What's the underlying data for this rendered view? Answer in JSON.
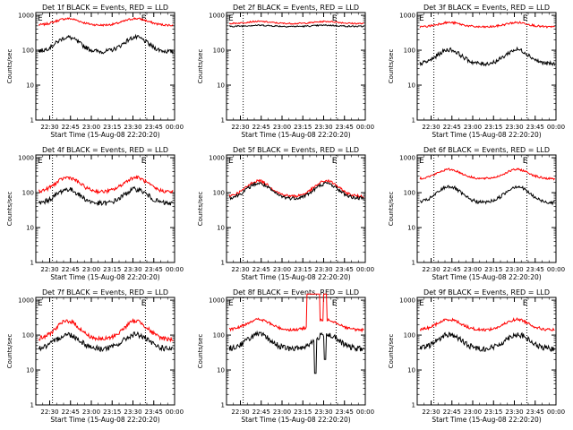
{
  "page": {
    "background": "#ffffff",
    "event_color": "#000000",
    "lld_color": "#ff0000"
  },
  "shared": {
    "xticks": [
      "22:30",
      "22:45",
      "23:00",
      "23:15",
      "23:30",
      "23:45",
      "00:00"
    ],
    "yticks": [
      "1",
      "10",
      "100",
      "1000"
    ],
    "ylabel": "Counts/sec",
    "xlabel": "Start Time (15-Aug-08 22:20:20)",
    "markers": [
      "E",
      "E"
    ]
  },
  "chart_data": [
    {
      "type": "line",
      "title": "Det 1f BLACK = Events, RED = LLD",
      "xlabel": "Start Time (15-Aug-08 22:20:20)",
      "ylabel": "Counts/sec",
      "y_scale": "log",
      "ylim": [
        1,
        1200
      ],
      "xlim": [
        "22:20",
        "00:00"
      ],
      "series": [
        {
          "name": "Events",
          "color": "#000000",
          "base": 90,
          "amp": 2.6,
          "noise": 0.06
        },
        {
          "name": "LLD",
          "color": "#ff0000",
          "base": 520,
          "amp": 1.55,
          "noise": 0.03
        }
      ]
    },
    {
      "type": "line",
      "title": "Det 2f BLACK = Events, RED = LLD",
      "xlabel": "Start Time (15-Aug-08 22:20:20)",
      "ylabel": "Counts/sec",
      "y_scale": "log",
      "ylim": [
        1,
        1200
      ],
      "xlim": [
        "22:20",
        "00:00"
      ],
      "series": [
        {
          "name": "Events",
          "color": "#000000",
          "base": 480,
          "amp": 1.08,
          "noise": 0.02
        },
        {
          "name": "LLD",
          "color": "#ff0000",
          "base": 580,
          "amp": 1.15,
          "noise": 0.02
        }
      ]
    },
    {
      "type": "line",
      "title": "Det 3f BLACK = Events, RED = LLD",
      "xlabel": "Start Time (15-Aug-08 22:20:20)",
      "ylabel": "Counts/sec",
      "y_scale": "log",
      "ylim": [
        1,
        1200
      ],
      "xlim": [
        "22:20",
        "00:00"
      ],
      "series": [
        {
          "name": "Events",
          "color": "#000000",
          "base": 40,
          "amp": 2.6,
          "noise": 0.06
        },
        {
          "name": "LLD",
          "color": "#ff0000",
          "base": 460,
          "amp": 1.35,
          "noise": 0.03
        }
      ]
    },
    {
      "type": "line",
      "title": "Det 4f BLACK = Events, RED = LLD",
      "xlabel": "Start Time (15-Aug-08 22:20:20)",
      "ylabel": "Counts/sec",
      "y_scale": "log",
      "ylim": [
        1,
        1200
      ],
      "xlim": [
        "22:20",
        "00:00"
      ],
      "series": [
        {
          "name": "Events",
          "color": "#000000",
          "base": 48,
          "amp": 2.6,
          "noise": 0.07
        },
        {
          "name": "LLD",
          "color": "#ff0000",
          "base": 105,
          "amp": 2.6,
          "noise": 0.05
        }
      ]
    },
    {
      "type": "line",
      "title": "Det 5f BLACK = Events, RED = LLD",
      "xlabel": "Start Time (15-Aug-08 22:20:20)",
      "ylabel": "Counts/sec",
      "y_scale": "log",
      "ylim": [
        1,
        1200
      ],
      "xlim": [
        "22:20",
        "00:00"
      ],
      "series": [
        {
          "name": "Events",
          "color": "#000000",
          "base": 68,
          "amp": 2.7,
          "noise": 0.05
        },
        {
          "name": "LLD",
          "color": "#ff0000",
          "base": 78,
          "amp": 2.8,
          "noise": 0.04
        }
      ]
    },
    {
      "type": "line",
      "title": "Det 6f BLACK = Events, RED = LLD",
      "xlabel": "Start Time (15-Aug-08 22:20:20)",
      "ylabel": "Counts/sec",
      "y_scale": "log",
      "ylim": [
        1,
        1200
      ],
      "xlim": [
        "22:20",
        "00:00"
      ],
      "series": [
        {
          "name": "Events",
          "color": "#000000",
          "base": 52,
          "amp": 2.9,
          "noise": 0.05
        },
        {
          "name": "LLD",
          "color": "#ff0000",
          "base": 250,
          "amp": 1.85,
          "noise": 0.03
        }
      ]
    },
    {
      "type": "line",
      "title": "Det 7f BLACK = Events, RED = LLD",
      "xlabel": "Start Time (15-Aug-08 22:20:20)",
      "ylabel": "Counts/sec",
      "y_scale": "log",
      "ylim": [
        1,
        1200
      ],
      "xlim": [
        "22:20",
        "00:00"
      ],
      "series": [
        {
          "name": "Events",
          "color": "#000000",
          "base": 40,
          "amp": 2.6,
          "noise": 0.08
        },
        {
          "name": "LLD",
          "color": "#ff0000",
          "base": 75,
          "amp": 3.4,
          "noise": 0.06
        }
      ]
    },
    {
      "type": "line",
      "title": "Det 8f BLACK = Events, RED = LLD",
      "xlabel": "Start Time (15-Aug-08 22:20:20)",
      "ylabel": "Counts/sec",
      "y_scale": "log",
      "ylim": [
        1,
        1200
      ],
      "xlim": [
        "22:20",
        "00:00"
      ],
      "series": [
        {
          "name": "Events",
          "color": "#000000",
          "base": 40,
          "amp": 2.6,
          "noise": 0.08,
          "dropouts": [
            {
              "x": "23:24",
              "y": 8
            },
            {
              "x": "23:31",
              "y": 20
            }
          ]
        },
        {
          "name": "LLD",
          "color": "#ff0000",
          "base": 140,
          "amp": 2.0,
          "noise": 0.04,
          "spikes": [
            {
              "from": "23:18",
              "to": "23:27",
              "y": 1500
            },
            {
              "from": "23:30",
              "to": "23:32",
              "y": 1500
            }
          ]
        }
      ]
    },
    {
      "type": "line",
      "title": "Det 9f BLACK = Events, RED = LLD",
      "xlabel": "Start Time (15-Aug-08 22:20:20)",
      "ylabel": "Counts/sec",
      "y_scale": "log",
      "ylim": [
        1,
        1200
      ],
      "xlim": [
        "22:20",
        "00:00"
      ],
      "series": [
        {
          "name": "Events",
          "color": "#000000",
          "base": 40,
          "amp": 2.6,
          "noise": 0.08
        },
        {
          "name": "LLD",
          "color": "#ff0000",
          "base": 140,
          "amp": 2.0,
          "noise": 0.04
        }
      ]
    }
  ]
}
